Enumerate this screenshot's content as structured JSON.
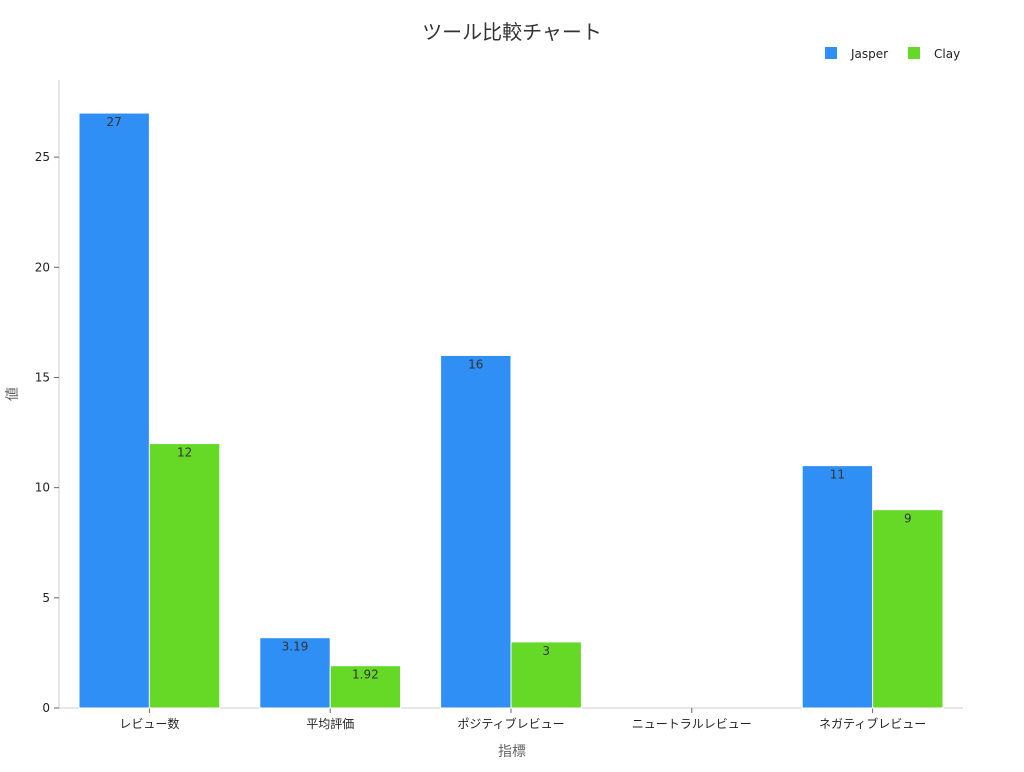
{
  "chart_data": {
    "type": "bar",
    "title": "ツール比較チャート",
    "xlabel": "指標",
    "ylabel": "値",
    "categories": [
      "レビュー数",
      "平均評価",
      "ポジティブレビュー",
      "ニュートラルレビュー",
      "ネガティブレビュー"
    ],
    "series": [
      {
        "name": "Jasper",
        "color": "#2f8ff5",
        "values": [
          27,
          3.19,
          16,
          0,
          11
        ],
        "labels": [
          "27",
          "3.19",
          "16",
          "",
          "11"
        ]
      },
      {
        "name": "Clay",
        "color": "#66d926",
        "values": [
          12,
          1.92,
          3,
          0,
          9
        ],
        "labels": [
          "12",
          "1.92",
          "3",
          "",
          "9"
        ]
      }
    ],
    "ylim": [
      0,
      28.5
    ],
    "yticks": [
      0,
      5,
      10,
      15,
      20,
      25
    ],
    "grid": false,
    "legend_position": "top-right"
  }
}
